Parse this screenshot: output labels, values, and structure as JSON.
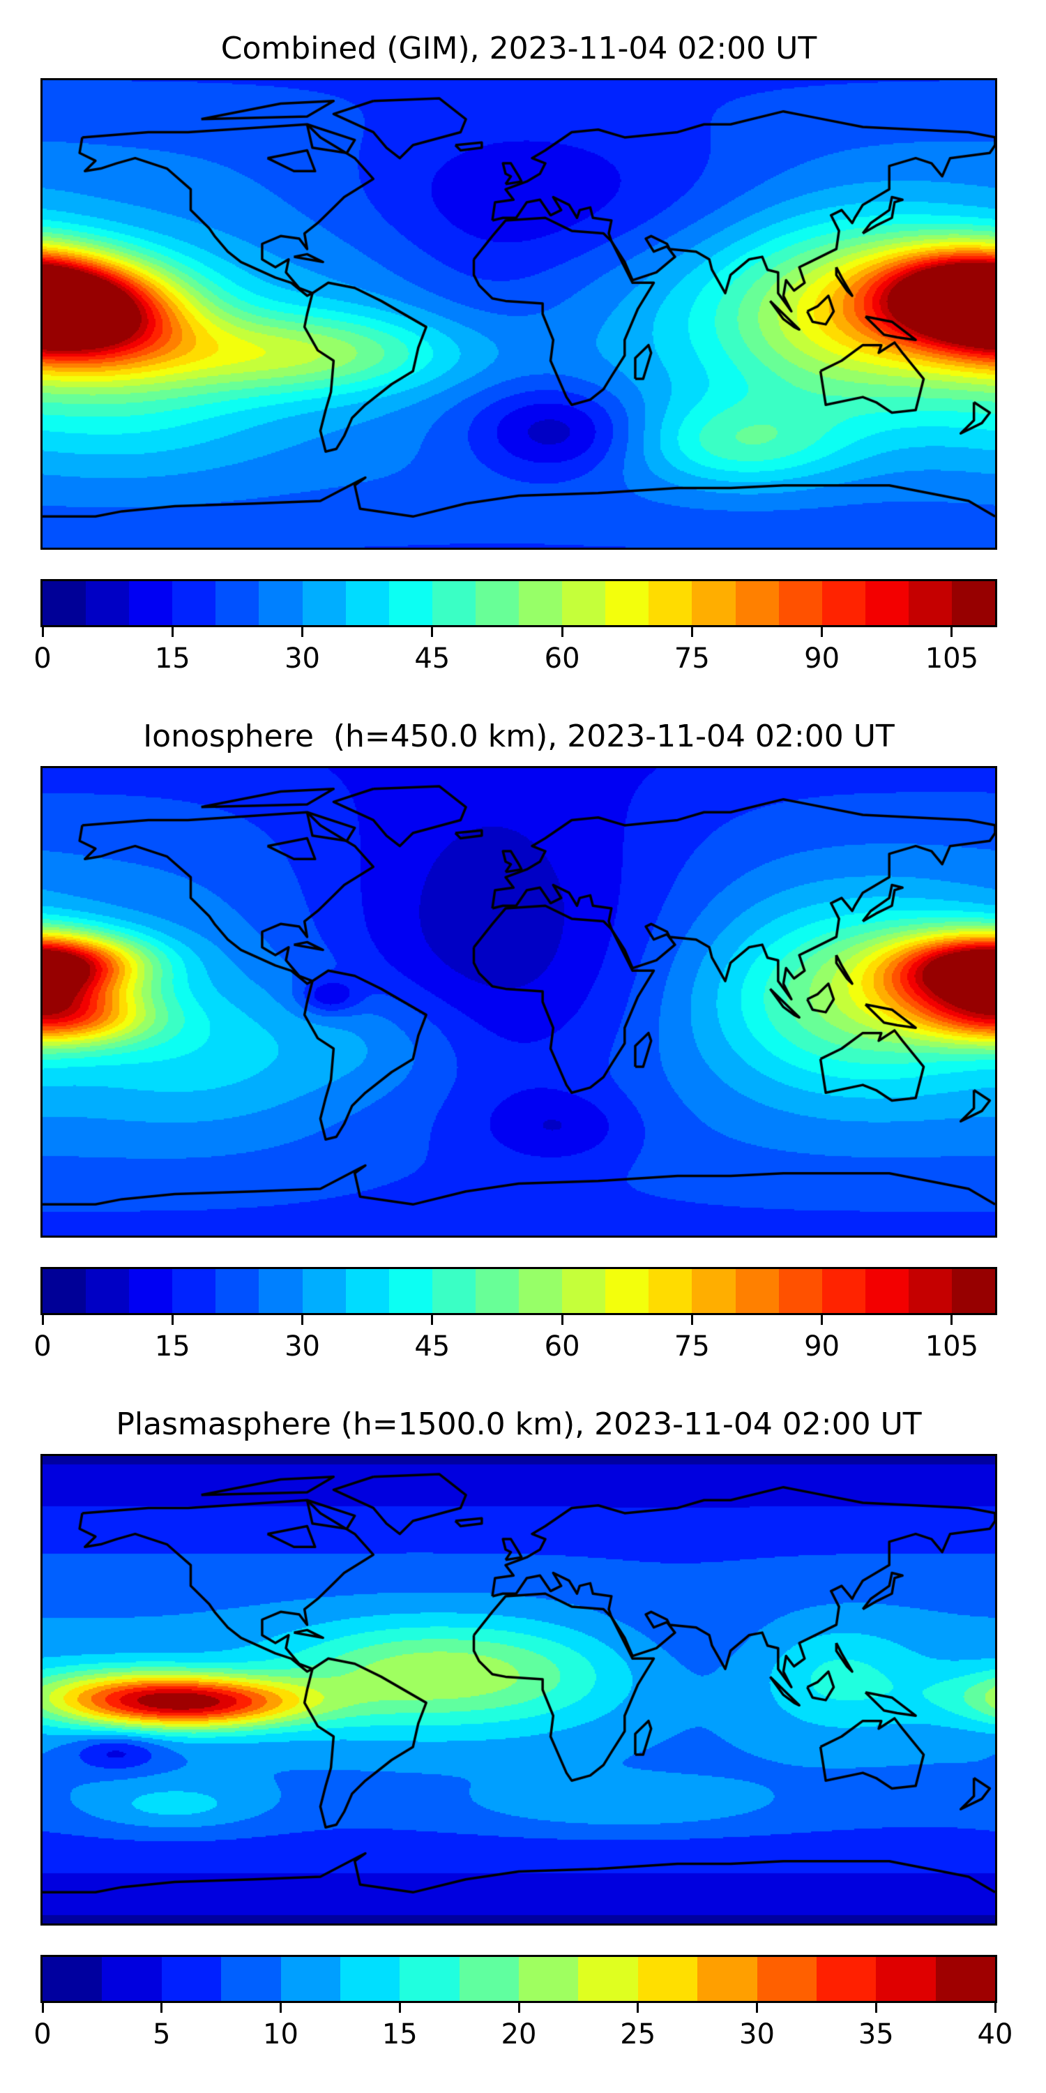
{
  "panels": [
    {
      "title": "Combined (GIM), 2023-11-04 02:00 UT",
      "colorbar": {
        "min": 0,
        "max": 110,
        "step": 5,
        "tick_labels": [
          "0",
          "15",
          "30",
          "45",
          "60",
          "75",
          "90",
          "105"
        ],
        "tick_values": [
          0,
          15,
          30,
          45,
          60,
          75,
          90,
          105
        ]
      }
    },
    {
      "title": "Ionosphere  (h=450.0 km), 2023-11-04 02:00 UT",
      "colorbar": {
        "min": 0,
        "max": 110,
        "step": 5,
        "tick_labels": [
          "0",
          "15",
          "30",
          "45",
          "60",
          "75",
          "90",
          "105"
        ],
        "tick_values": [
          0,
          15,
          30,
          45,
          60,
          75,
          90,
          105
        ]
      }
    },
    {
      "title": "Plasmasphere (h=1500.0 km), 2023-11-04 02:00 UT",
      "colorbar": {
        "min": 0,
        "max": 40,
        "step": 2.5,
        "tick_labels": [
          "0",
          "5",
          "10",
          "15",
          "20",
          "25",
          "30",
          "35",
          "40"
        ],
        "tick_values": [
          0,
          5,
          10,
          15,
          20,
          25,
          30,
          35,
          40
        ]
      }
    }
  ],
  "chart_data": [
    {
      "type": "heatmap",
      "title": "Combined (GIM), 2023-11-04 02:00 UT",
      "projection": "plate-carree",
      "xlim": [
        -180,
        180
      ],
      "ylim": [
        -90,
        90
      ],
      "colormap": "jet",
      "levels": [
        0,
        110,
        5
      ],
      "field_model": {
        "base_equator": 32,
        "base_pole": 20,
        "blobs_lon_lat_sdlon_sdlat_amp": [
          [
            -165,
            0,
            28,
            14,
            72
          ],
          [
            170,
            8,
            24,
            12,
            65
          ],
          [
            128,
            0,
            38,
            24,
            38
          ],
          [
            -85,
            -15,
            45,
            11,
            28
          ],
          [
            -150,
            -30,
            40,
            22,
            14
          ],
          [
            10,
            45,
            60,
            22,
            -14
          ],
          [
            15,
            -45,
            22,
            12,
            -18
          ],
          [
            85,
            -50,
            28,
            12,
            20
          ],
          [
            -10,
            0,
            30,
            35,
            -8
          ]
        ]
      }
    },
    {
      "type": "heatmap",
      "title": "Ionosphere  (h=450.0 km), 2023-11-04 02:00 UT",
      "projection": "plate-carree",
      "xlim": [
        -180,
        180
      ],
      "ylim": [
        -90,
        90
      ],
      "colormap": "jet",
      "levels": [
        0,
        110,
        5
      ],
      "field_model": {
        "base_equator": 30,
        "base_pole": 18,
        "blobs_lon_lat_sdlon_sdlat_amp": [
          [
            -172,
            15,
            24,
            8,
            42
          ],
          [
            -172,
            -6,
            24,
            8,
            42
          ],
          [
            172,
            10,
            24,
            11,
            55
          ],
          [
            130,
            2,
            38,
            24,
            28
          ],
          [
            -120,
            -20,
            40,
            20,
            10
          ],
          [
            -10,
            20,
            50,
            45,
            -22
          ],
          [
            -72,
            2,
            8,
            5,
            -15
          ],
          [
            15,
            -48,
            20,
            10,
            -10
          ],
          [
            -50,
            -15,
            25,
            15,
            8
          ]
        ]
      }
    },
    {
      "type": "heatmap",
      "title": "Plasmasphere (h=1500.0 km), 2023-11-04 02:00 UT",
      "projection": "plate-carree",
      "xlim": [
        -180,
        180
      ],
      "ylim": [
        -90,
        90
      ],
      "colormap": "jet",
      "levels": [
        0,
        40,
        2.5
      ],
      "field_model": {
        "base_equator": 11,
        "base_pole": 2,
        "blobs_lon_lat_sdlon_sdlat_amp": [
          [
            -122,
            -5,
            30,
            7,
            23
          ],
          [
            -155,
            -2,
            30,
            8,
            10
          ],
          [
            -45,
            6,
            35,
            14,
            8
          ],
          [
            5,
            6,
            38,
            14,
            6
          ],
          [
            120,
            5,
            22,
            14,
            5
          ],
          [
            -152,
            -24,
            12,
            5,
            -6
          ],
          [
            -130,
            -45,
            25,
            7,
            5
          ],
          [
            40,
            -45,
            40,
            7,
            4
          ],
          [
            60,
            10,
            30,
            20,
            -3
          ]
        ]
      }
    }
  ]
}
